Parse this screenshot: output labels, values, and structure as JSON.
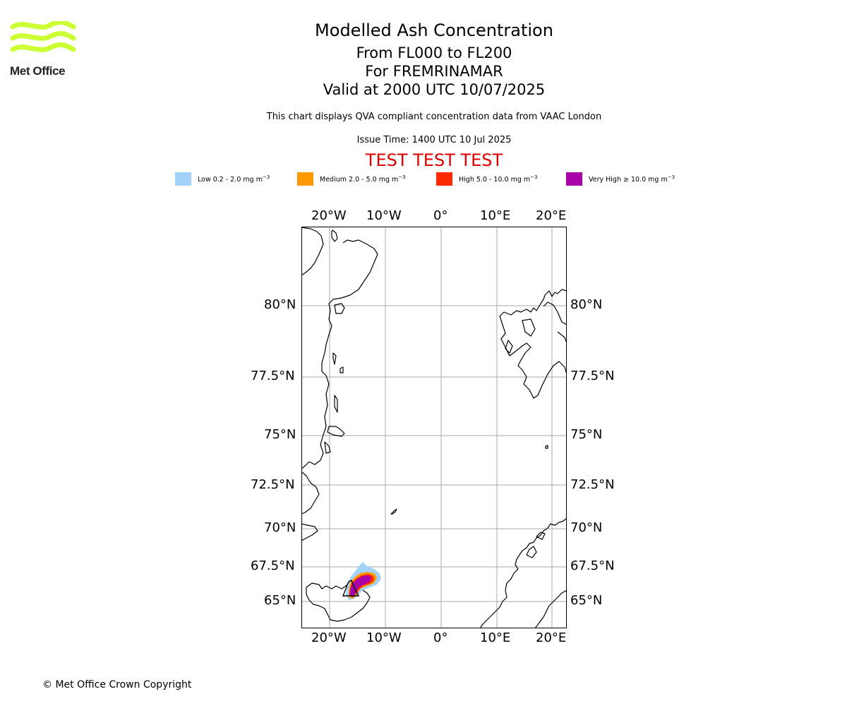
{
  "logo": {
    "text": "Met Office",
    "wave_color": "#ccff33"
  },
  "header": {
    "title": "Modelled Ash Concentration",
    "levels": "From FL000 to FL200",
    "volcano": "For FREMRINAMAR",
    "valid": "Valid at 2000 UTC 10/07/2025",
    "description": "This chart displays QVA compliant concentration data from VAAC London",
    "issue_time": "Issue Time: 1400 UTC 10 Jul 2025",
    "test_banner": "TEST TEST TEST"
  },
  "legend": [
    {
      "label": "Low 0.2 - 2.0 mg m",
      "exp": "−3",
      "color": "#a3d3fa"
    },
    {
      "label": "Medium 2.0 - 5.0 mg m",
      "exp": "−3",
      "color": "#ff9900"
    },
    {
      "label": "High 5.0 - 10.0 mg m",
      "exp": "−3",
      "color": "#ff2a00"
    },
    {
      "label": "Very High  ≥  10.0 mg m",
      "exp": "−3",
      "color": "#aa00aa"
    }
  ],
  "map": {
    "longitude_labels": [
      "20°W",
      "10°W",
      "0°",
      "10°E",
      "20°E"
    ],
    "latitude_labels": [
      "80°N",
      "77.5°N",
      "75°N",
      "72.5°N",
      "70°N",
      "67.5°N",
      "65°N"
    ],
    "gridline_color": "#aaaaaa"
  },
  "footer": {
    "copyright": "© Met Office Crown Copyright"
  }
}
